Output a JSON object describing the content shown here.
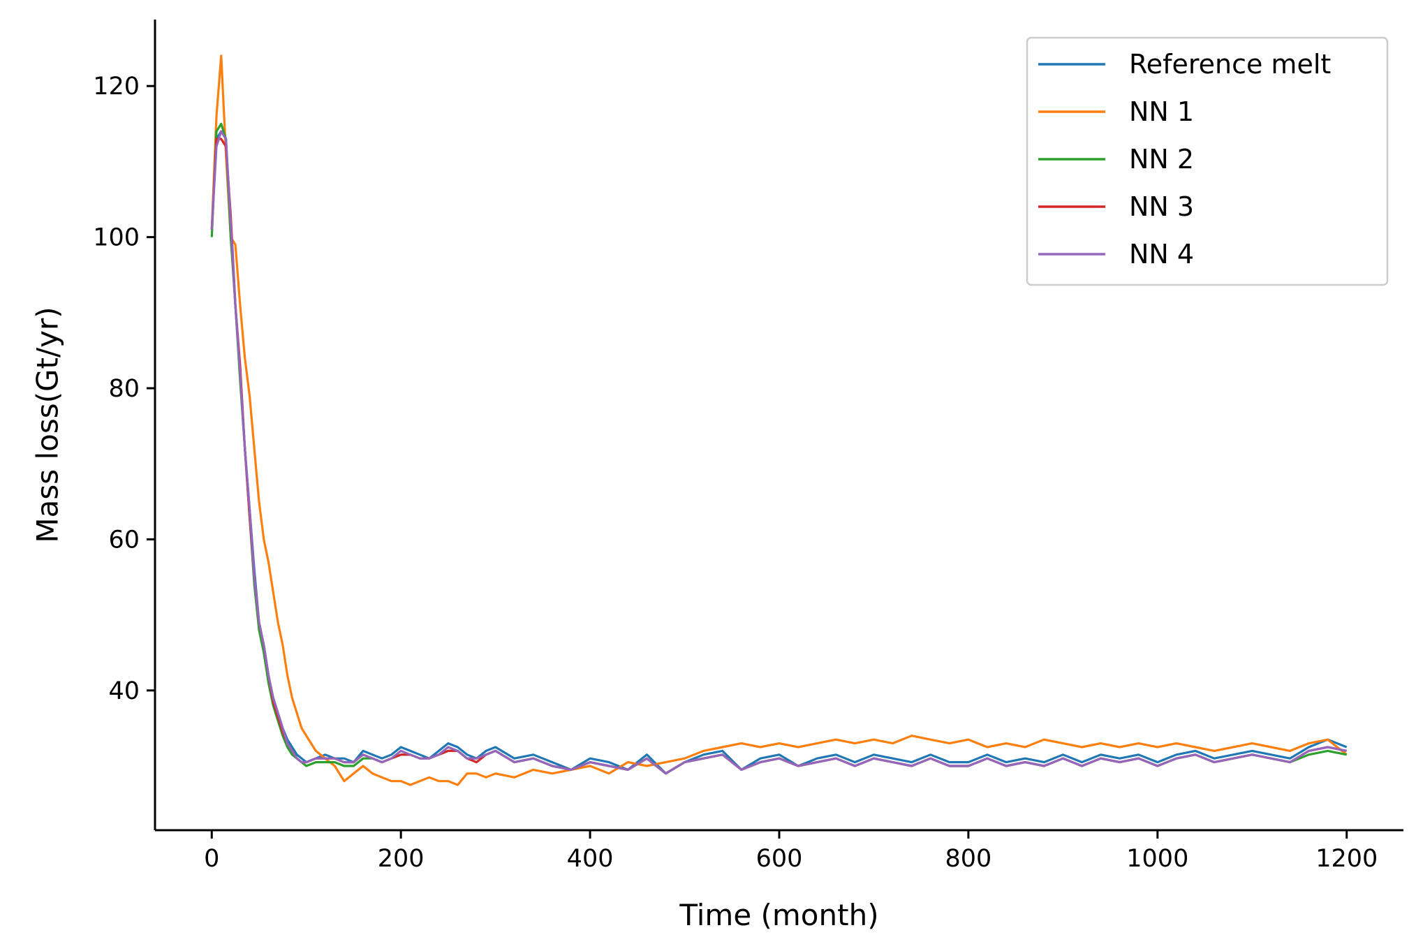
{
  "chart_data": {
    "type": "line",
    "title": "",
    "xlabel": "Time (month)",
    "ylabel": "Mass loss(Gt/yr)",
    "xlim": [
      -60,
      1260
    ],
    "ylim": [
      21.5,
      128.8
    ],
    "xticks": [
      0,
      200,
      400,
      600,
      800,
      1000,
      1200
    ],
    "yticks": [
      40,
      60,
      80,
      100,
      120
    ],
    "grid": false,
    "legend_position": "top-right",
    "x": [
      0,
      5,
      10,
      15,
      20,
      25,
      30,
      35,
      40,
      45,
      50,
      55,
      60,
      65,
      70,
      75,
      80,
      85,
      90,
      95,
      100,
      110,
      120,
      130,
      140,
      150,
      160,
      170,
      180,
      190,
      200,
      210,
      220,
      230,
      240,
      250,
      260,
      270,
      280,
      290,
      300,
      320,
      340,
      360,
      380,
      400,
      420,
      440,
      460,
      480,
      500,
      520,
      540,
      560,
      580,
      600,
      620,
      640,
      660,
      680,
      700,
      720,
      740,
      760,
      780,
      800,
      820,
      840,
      860,
      880,
      900,
      920,
      940,
      960,
      980,
      1000,
      1020,
      1040,
      1060,
      1080,
      1100,
      1120,
      1140,
      1160,
      1180,
      1200
    ],
    "series": [
      {
        "name": "Reference melt",
        "color": "#1f77b4",
        "values": [
          101,
          113,
          114,
          113,
          101,
          91,
          82,
          72,
          64,
          56,
          49,
          46,
          42,
          39,
          37,
          35,
          33.5,
          32.5,
          31.5,
          31,
          30.5,
          31,
          31.5,
          31,
          31,
          30.5,
          32,
          31.5,
          31,
          31.5,
          32.5,
          32,
          31.5,
          31,
          32,
          33,
          32.5,
          31.5,
          31,
          32,
          32.5,
          31,
          31.5,
          30.5,
          29.5,
          31,
          30.5,
          29.5,
          31.5,
          29,
          30.5,
          31.5,
          32,
          29.5,
          31,
          31.5,
          30,
          31,
          31.5,
          30.5,
          31.5,
          31,
          30.5,
          31.5,
          30.5,
          30.5,
          31.5,
          30.5,
          31,
          30.5,
          31.5,
          30.5,
          31.5,
          31,
          31.5,
          30.5,
          31.5,
          32,
          31,
          31.5,
          32,
          31.5,
          31,
          32.5,
          33.5,
          32.5
        ]
      },
      {
        "name": "NN 1",
        "color": "#ff7f0e",
        "values": [
          101,
          116,
          124,
          111,
          100,
          99,
          91,
          84,
          79,
          72,
          65,
          60,
          57,
          53,
          49,
          46,
          42,
          39,
          37,
          35,
          34,
          32,
          31,
          30,
          28,
          29,
          30,
          29,
          28.5,
          28,
          28,
          27.5,
          28,
          28.5,
          28,
          28,
          27.5,
          29,
          29,
          28.5,
          29,
          28.5,
          29.5,
          29,
          29.5,
          30,
          29,
          30.5,
          30,
          30.5,
          31,
          32,
          32.5,
          33,
          32.5,
          33,
          32.5,
          33,
          33.5,
          33,
          33.5,
          33,
          34,
          33.5,
          33,
          33.5,
          32.5,
          33,
          32.5,
          33.5,
          33,
          32.5,
          33,
          32.5,
          33,
          32.5,
          33,
          32.5,
          32,
          32.5,
          33,
          32.5,
          32,
          33,
          33.5,
          31.5
        ]
      },
      {
        "name": "NN 2",
        "color": "#2ca02c",
        "values": [
          100,
          114,
          115,
          113,
          100,
          91,
          81,
          72,
          63,
          54,
          48,
          45,
          41,
          38,
          36,
          34,
          32.5,
          31.5,
          31,
          30.5,
          30,
          30.5,
          30.5,
          30.5,
          30,
          30,
          31,
          31,
          30.5,
          31,
          31.5,
          31.5,
          31,
          31,
          31.5,
          32,
          32,
          31,
          31,
          31.5,
          32,
          30.5,
          31,
          30,
          29.5,
          30.5,
          30,
          29.5,
          31,
          29,
          30.5,
          31,
          31.5,
          29.5,
          30.5,
          31,
          30,
          30.5,
          31,
          30,
          31,
          30.5,
          30,
          31,
          30,
          30,
          31,
          30,
          30.5,
          30,
          31,
          30,
          31,
          30.5,
          31,
          30,
          31,
          31.5,
          30.5,
          31,
          31.5,
          31,
          30.5,
          31.5,
          32,
          31.5
        ]
      },
      {
        "name": "NN 3",
        "color": "#d62728",
        "values": [
          101,
          113,
          113,
          112,
          103,
          91,
          83,
          72,
          63,
          55,
          49,
          46,
          42,
          38.5,
          36.5,
          34.5,
          33,
          32,
          31,
          30.5,
          30.5,
          31,
          31,
          31,
          30.5,
          30.5,
          31.5,
          31,
          30.5,
          31,
          31.5,
          31.5,
          31,
          31,
          31.5,
          32,
          32,
          31,
          30.5,
          31.5,
          32,
          30.5,
          31,
          30,
          29.5,
          30.5,
          30,
          29.5,
          31,
          29,
          30.5,
          31,
          31.5,
          29.5,
          30.5,
          31,
          30,
          30.5,
          31,
          30,
          31,
          30.5,
          30,
          31,
          30,
          30,
          31,
          30,
          30.5,
          30,
          31,
          30,
          31,
          30.5,
          31,
          30,
          31,
          31.5,
          30.5,
          31,
          31.5,
          31,
          30.5,
          32,
          32.5,
          32
        ]
      },
      {
        "name": "NN 4",
        "color": "#9467bd",
        "values": [
          101,
          112,
          114,
          113,
          102,
          91,
          82,
          72,
          64,
          55,
          49,
          46,
          42,
          39,
          37,
          35,
          33,
          32,
          31,
          30.5,
          30.5,
          31,
          31,
          31,
          30.5,
          30.5,
          31.5,
          31,
          30.5,
          31,
          32,
          31.5,
          31,
          31,
          31.5,
          32.5,
          32,
          31,
          31,
          31.5,
          32,
          30.5,
          31,
          30,
          29.5,
          30.5,
          30,
          29.5,
          31,
          29,
          30.5,
          31,
          31.5,
          29.5,
          30.5,
          31,
          30,
          30.5,
          31,
          30,
          31,
          30.5,
          30,
          31,
          30,
          30,
          31,
          30,
          30.5,
          30,
          31,
          30,
          31,
          30.5,
          31,
          30,
          31,
          31.5,
          30.5,
          31,
          31.5,
          31,
          30.5,
          32,
          32.5,
          32
        ]
      }
    ]
  }
}
